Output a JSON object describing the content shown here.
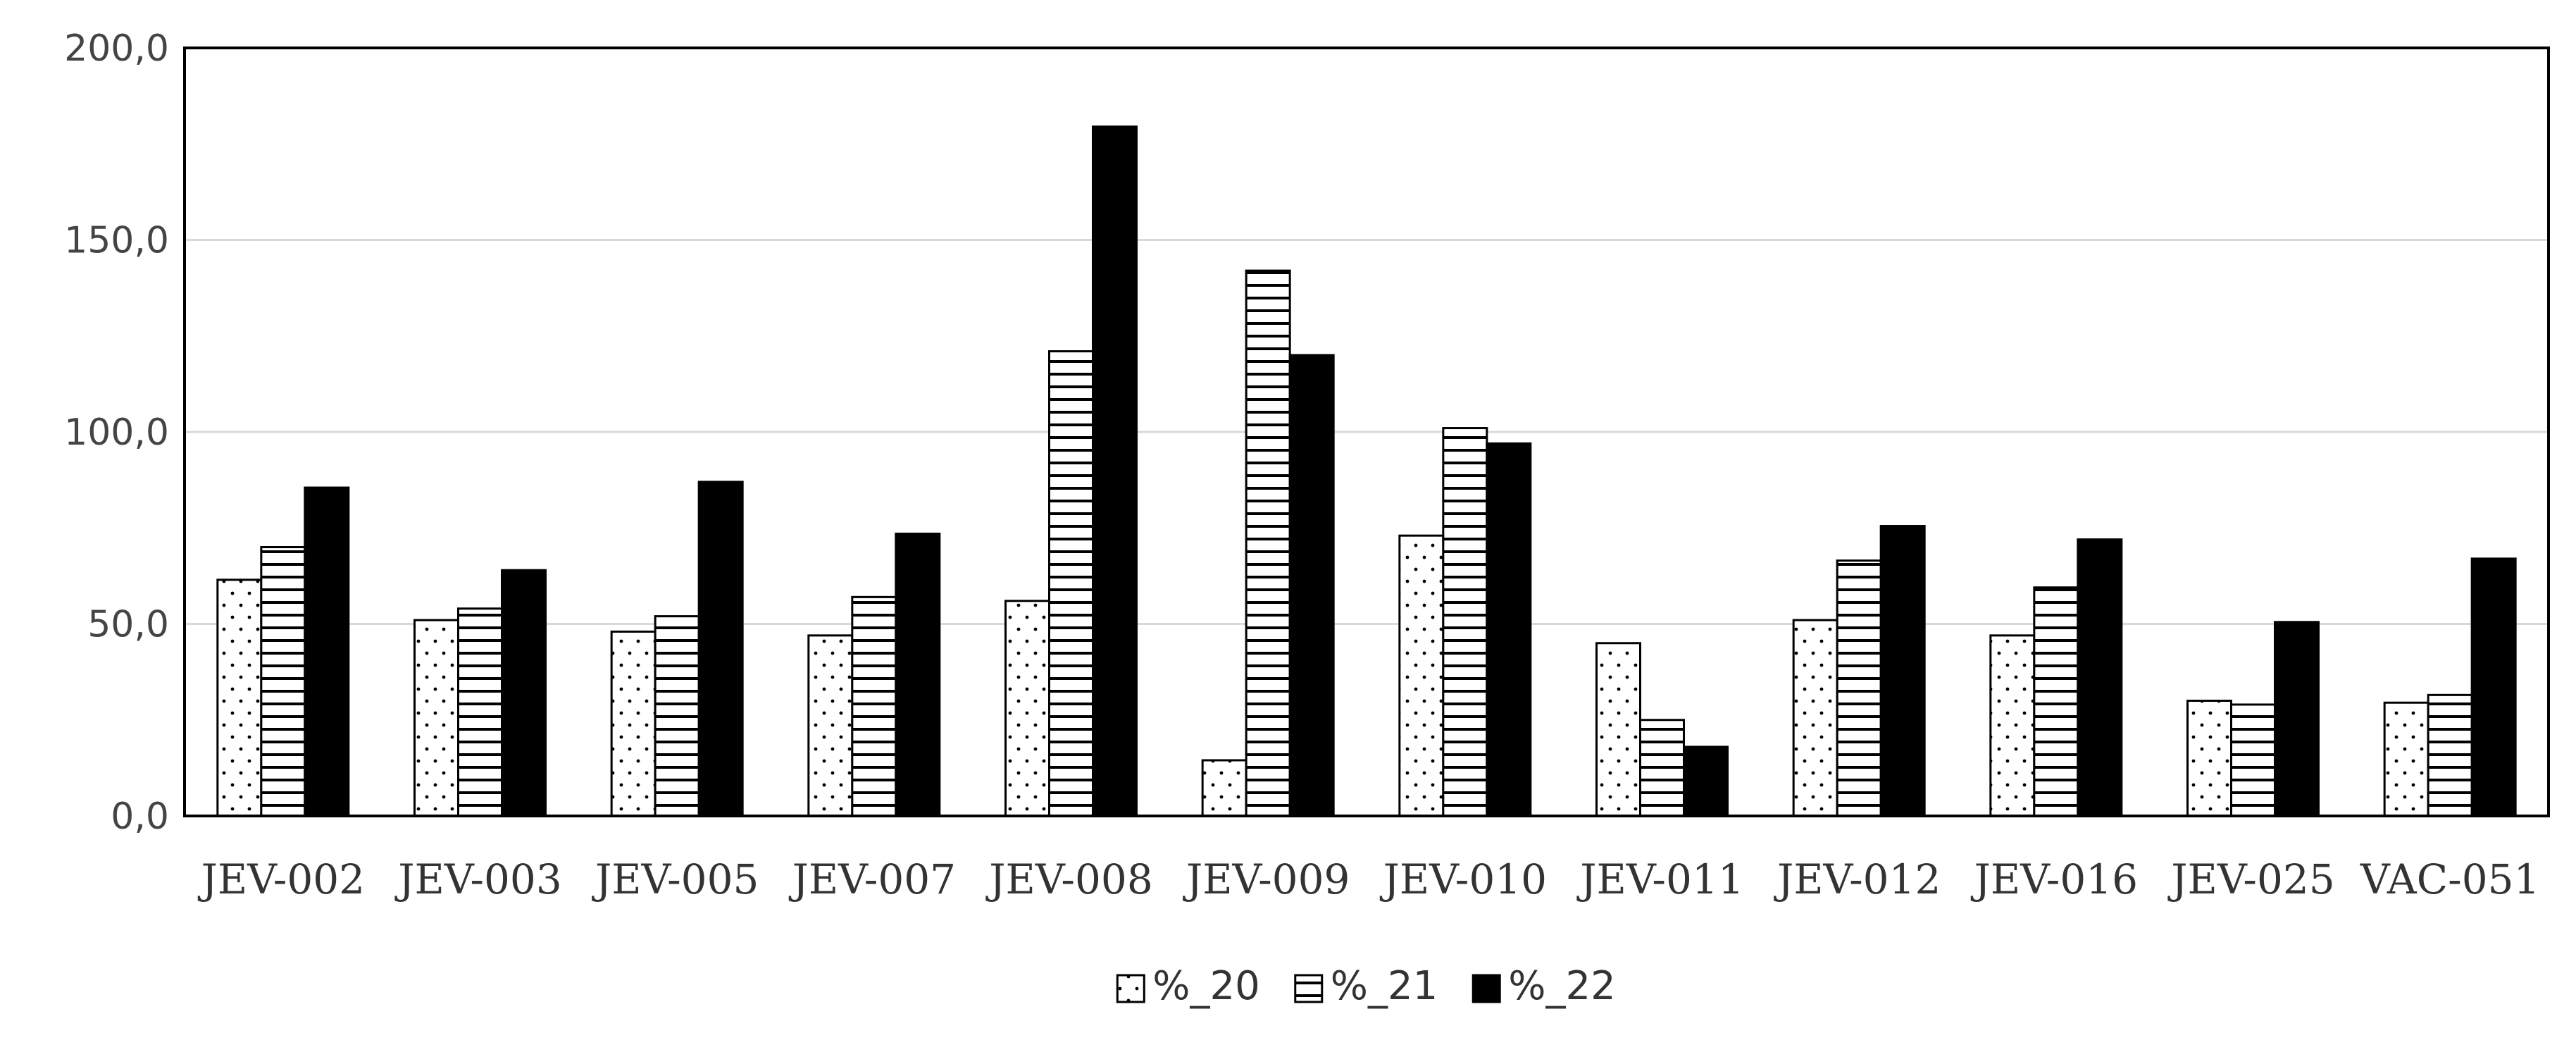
{
  "chart_data": {
    "type": "bar",
    "categories": [
      "JEV-002",
      "JEV-003",
      "JEV-005",
      "JEV-007",
      "JEV-008",
      "JEV-009",
      "JEV-010",
      "JEV-011",
      "JEV-012",
      "JEV-016",
      "JEV-025",
      "VAC-051"
    ],
    "series": [
      {
        "name": "%_20",
        "pattern": "dots",
        "values": [
          61.5,
          51.0,
          48.0,
          47.0,
          56.0,
          14.5,
          73.0,
          45.0,
          51.0,
          47.0,
          30.0,
          29.5
        ]
      },
      {
        "name": "%_21",
        "pattern": "horizontal-lines",
        "values": [
          70.0,
          54.0,
          52.0,
          57.0,
          121.0,
          142.0,
          101.0,
          25.0,
          66.5,
          59.5,
          29.0,
          31.5
        ]
      },
      {
        "name": "%_22",
        "pattern": "solid-black",
        "values": [
          85.5,
          64.0,
          87.0,
          73.5,
          179.5,
          120.0,
          97.0,
          18.0,
          75.5,
          72.0,
          50.5,
          67.0
        ]
      }
    ],
    "title": "",
    "xlabel": "",
    "ylabel": "",
    "ylim": [
      0,
      200
    ],
    "yticks": [
      "0,0",
      "50,0",
      "100,0",
      "150,0",
      "200,0"
    ],
    "grid": true,
    "legend_position": "bottom-center",
    "colors": {
      "bar_fill": "#ffffff",
      "bar_stroke": "#000000",
      "solid": "#000000",
      "grid": "#d9d9d9",
      "axis": "#000000"
    }
  }
}
